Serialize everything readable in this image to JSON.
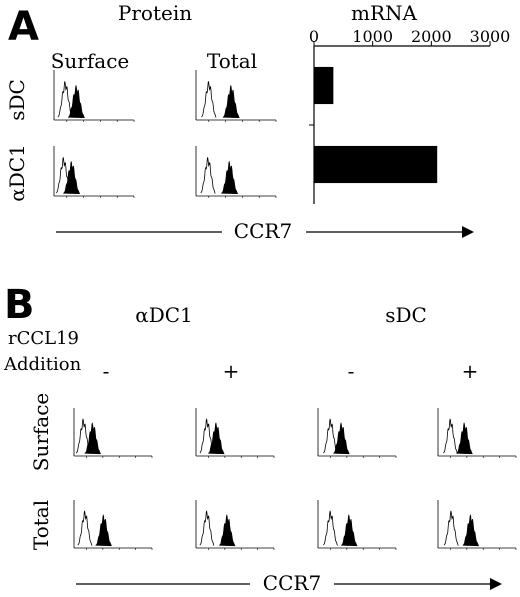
{
  "panel_a": {
    "letter": "A",
    "protein_title": "Protein",
    "mrna_title": "mRNA",
    "surface_label": "Surface",
    "total_label": "Total",
    "rows": [
      "sDC",
      "αDC1"
    ],
    "axis_label": "CCR7"
  },
  "panel_b": {
    "letter": "B",
    "group_labels": [
      "αDC1",
      "sDC"
    ],
    "treatment_line1": "rCCL19",
    "treatment_line2": "Addition",
    "signs": [
      "-",
      "+",
      "-",
      "+"
    ],
    "rows": [
      "Surface",
      "Total"
    ],
    "axis_label": "CCR7"
  },
  "chart_data": [
    {
      "type": "bar",
      "title": "mRNA",
      "orientation": "horizontal",
      "categories": [
        "sDC",
        "αDC1"
      ],
      "values": [
        330,
        2100
      ],
      "xlim": [
        0,
        3000
      ],
      "xticks": [
        0,
        1000,
        2000,
        3000
      ],
      "bar_color": "#000000"
    }
  ],
  "histograms": {
    "a": [
      {
        "row": "sDC",
        "col": "Surface",
        "isotype_peak": 0.14,
        "ccr7_peak": 0.28
      },
      {
        "row": "sDC",
        "col": "Total",
        "isotype_peak": 0.16,
        "ccr7_peak": 0.44
      },
      {
        "row": "αDC1",
        "col": "Surface",
        "isotype_peak": 0.12,
        "ccr7_peak": 0.22
      },
      {
        "row": "αDC1",
        "col": "Total",
        "isotype_peak": 0.15,
        "ccr7_peak": 0.42
      }
    ],
    "b": [
      {
        "row": "Surface",
        "col": "αDC1 -",
        "isotype_peak": 0.12,
        "ccr7_peak": 0.24
      },
      {
        "row": "Surface",
        "col": "αDC1 +",
        "isotype_peak": 0.14,
        "ccr7_peak": 0.26
      },
      {
        "row": "Surface",
        "col": "sDC -",
        "isotype_peak": 0.16,
        "ccr7_peak": 0.3
      },
      {
        "row": "Surface",
        "col": "sDC +",
        "isotype_peak": 0.16,
        "ccr7_peak": 0.34
      },
      {
        "row": "Total",
        "col": "αDC1 -",
        "isotype_peak": 0.14,
        "ccr7_peak": 0.38
      },
      {
        "row": "Total",
        "col": "αDC1 +",
        "isotype_peak": 0.14,
        "ccr7_peak": 0.4
      },
      {
        "row": "Total",
        "col": "sDC -",
        "isotype_peak": 0.16,
        "ccr7_peak": 0.4
      },
      {
        "row": "Total",
        "col": "sDC +",
        "isotype_peak": 0.17,
        "ccr7_peak": 0.42
      }
    ]
  }
}
